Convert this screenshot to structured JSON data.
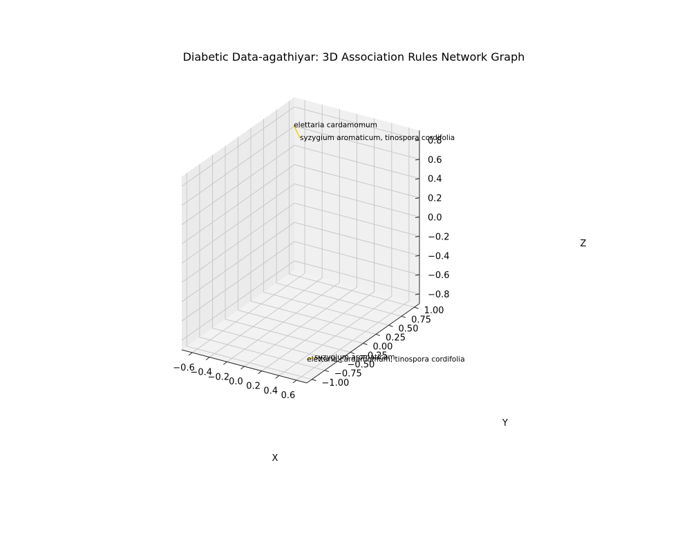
{
  "chart_data": {
    "type": "network-3d",
    "title": "Diabetic Data-agathiyar:  3D Association Rules Network Graph",
    "xlabel": "X",
    "ylabel": "Y",
    "zlabel": "Z",
    "xlim": [
      -0.72,
      0.72
    ],
    "ylim": [
      -1.1,
      1.1
    ],
    "zlim": [
      -0.9,
      0.9
    ],
    "xticks": [
      -0.6,
      -0.4,
      -0.2,
      0.0,
      0.2,
      0.4,
      0.6
    ],
    "yticks": [
      -1.0,
      -0.75,
      -0.5,
      -0.25,
      0.0,
      0.25,
      0.5,
      0.75,
      1.0
    ],
    "zticks": [
      -0.8,
      -0.6,
      -0.4,
      -0.2,
      0.0,
      0.2,
      0.4,
      0.6,
      0.8
    ],
    "xtick_labels": [
      "−0.6",
      "−0.4",
      "−0.2",
      "0.0",
      "0.2",
      "0.4",
      "0.6"
    ],
    "ytick_labels": [
      "−1.00",
      "−0.75",
      "−0.50",
      "−0.25",
      "0.00",
      "0.25",
      "0.50",
      "0.75",
      "1.00"
    ],
    "ztick_labels": [
      "−0.8",
      "−0.6",
      "−0.4",
      "−0.2",
      "0.0",
      "0.2",
      "0.4",
      "0.6",
      "0.8"
    ],
    "edge_color": "#f2d21b",
    "nodes": [
      {
        "label": "elettaria cardamomum",
        "x": -0.62,
        "y": 0.92,
        "z": 0.7
      },
      {
        "label": "syzygium aromaticum, tinospora cordifolia",
        "x": -0.58,
        "y": 0.97,
        "z": 0.56
      },
      {
        "label": "syzygium aromaticum",
        "x": 0.62,
        "y": -0.78,
        "z": -0.78
      },
      {
        "label": "elettaria cardamomum, tinospora cordifolia",
        "x": 0.58,
        "y": -0.86,
        "z": -0.78
      }
    ],
    "edges": [
      [
        0,
        1
      ],
      [
        2,
        3
      ]
    ]
  }
}
